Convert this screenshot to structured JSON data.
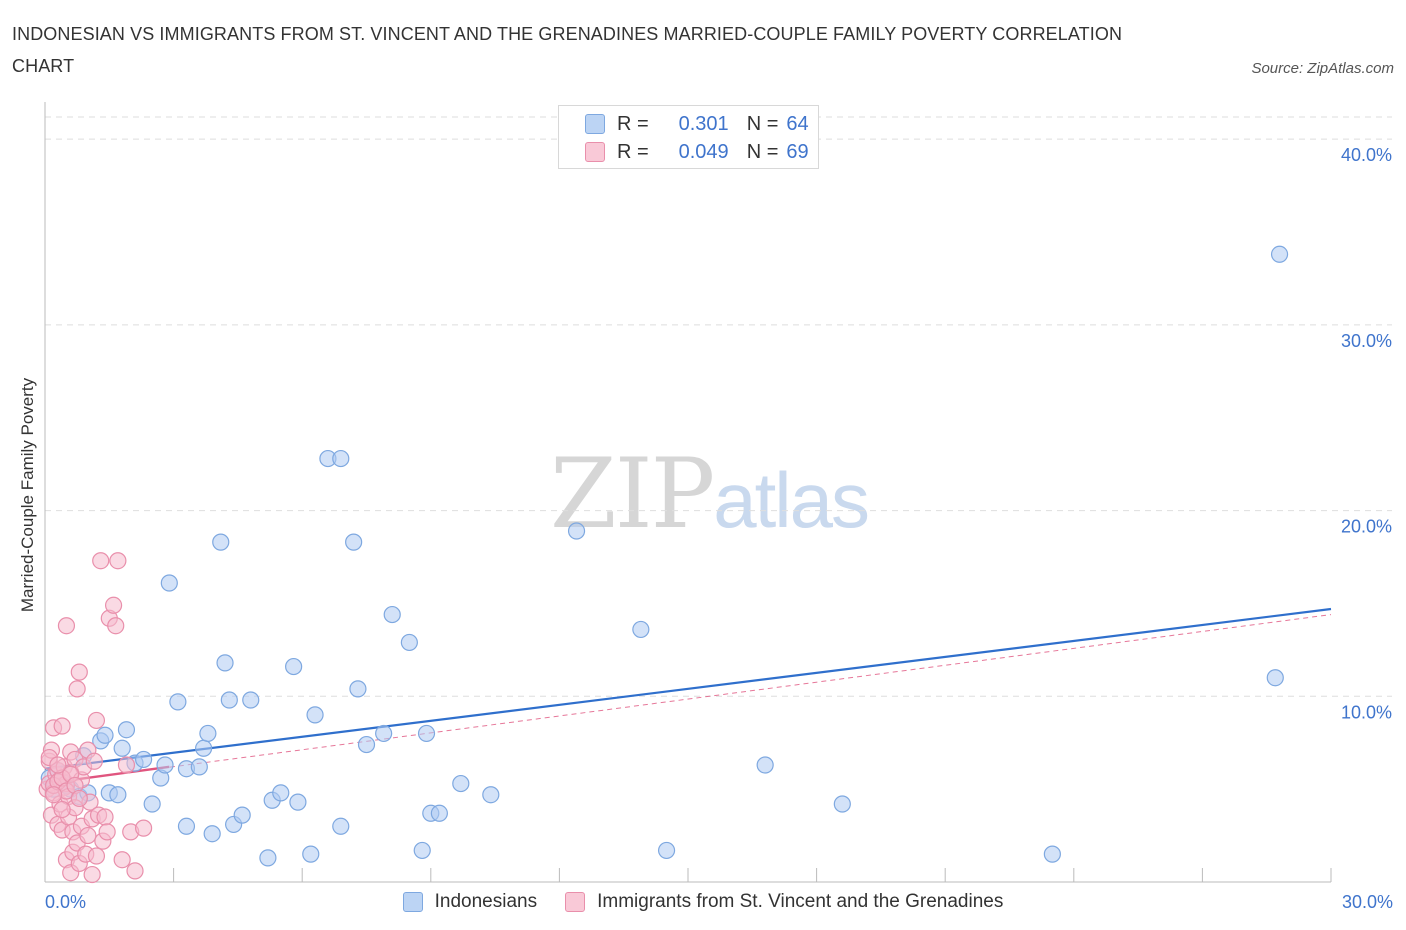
{
  "title": "INDONESIAN VS IMMIGRANTS FROM ST. VINCENT AND THE GRENADINES MARRIED-COUPLE FAMILY POVERTY CORRELATION CHART",
  "source": "Source: ZipAtlas.com",
  "watermark": {
    "zip": "ZIP",
    "atlas": "atlas"
  },
  "legend": {
    "rows": [
      {
        "r_label": "R =",
        "r_value": "0.301",
        "n_label": "N =",
        "n_value": "64"
      },
      {
        "r_label": "R =",
        "r_value": "0.049",
        "n_label": "N =",
        "n_value": "69"
      }
    ]
  },
  "colors": {
    "blue_fill": "#aecbf2",
    "blue_stroke": "#7ea8e0",
    "blue_line": "#2f6fcc",
    "pink_fill": "#f6bccd",
    "pink_stroke": "#e98fab",
    "pink_line": "#e0557f",
    "tick_text": "#3f74cc",
    "grid": "#dedede"
  },
  "chart_data": {
    "type": "scatter",
    "title": "INDONESIAN VS IMMIGRANTS FROM ST. VINCENT AND THE GRENADINES MARRIED-COUPLE FAMILY POVERTY CORRELATION CHART",
    "xlabel": "",
    "ylabel": "Married-Couple Family Poverty",
    "xlim": [
      0,
      30
    ],
    "ylim": [
      0,
      42
    ],
    "x_tick_labels": [
      "0.0%",
      "30.0%"
    ],
    "y_ticks": [
      10,
      20,
      30,
      40
    ],
    "y_tick_labels": [
      "10.0%",
      "20.0%",
      "30.0%",
      "40.0%"
    ],
    "grid": true,
    "legend_position": "top-center",
    "series": [
      {
        "name": "Indonesians",
        "color": "#aecbf2",
        "trend": {
          "x": [
            0.0,
            30.0
          ],
          "y": [
            6.1,
            14.7
          ],
          "style": "solid"
        },
        "points": [
          [
            0.2,
            5.0
          ],
          [
            0.4,
            5.4
          ],
          [
            0.6,
            5.0
          ],
          [
            0.8,
            4.6
          ],
          [
            0.9,
            6.8
          ],
          [
            1.0,
            4.8
          ],
          [
            1.3,
            7.6
          ],
          [
            1.4,
            7.9
          ],
          [
            1.5,
            4.8
          ],
          [
            1.7,
            4.7
          ],
          [
            1.8,
            7.2
          ],
          [
            1.9,
            8.2
          ],
          [
            2.1,
            6.4
          ],
          [
            2.3,
            6.6
          ],
          [
            2.5,
            4.2
          ],
          [
            2.7,
            5.6
          ],
          [
            2.8,
            6.3
          ],
          [
            2.9,
            16.1
          ],
          [
            3.1,
            9.7
          ],
          [
            3.3,
            3.0
          ],
          [
            3.3,
            6.1
          ],
          [
            3.6,
            6.2
          ],
          [
            3.7,
            7.2
          ],
          [
            3.8,
            8.0
          ],
          [
            3.9,
            2.6
          ],
          [
            4.1,
            18.3
          ],
          [
            4.2,
            11.8
          ],
          [
            4.3,
            9.8
          ],
          [
            4.4,
            3.1
          ],
          [
            4.6,
            3.6
          ],
          [
            4.8,
            9.8
          ],
          [
            5.2,
            1.3
          ],
          [
            5.3,
            4.4
          ],
          [
            5.5,
            4.8
          ],
          [
            5.8,
            11.6
          ],
          [
            5.9,
            4.3
          ],
          [
            6.2,
            1.5
          ],
          [
            6.3,
            9.0
          ],
          [
            6.6,
            22.8
          ],
          [
            6.9,
            22.8
          ],
          [
            6.9,
            3.0
          ],
          [
            7.2,
            18.3
          ],
          [
            7.3,
            10.4
          ],
          [
            7.5,
            7.4
          ],
          [
            7.9,
            8.0
          ],
          [
            8.1,
            14.4
          ],
          [
            8.5,
            12.9
          ],
          [
            8.8,
            1.7
          ],
          [
            8.9,
            8.0
          ],
          [
            9.0,
            3.7
          ],
          [
            9.2,
            3.7
          ],
          [
            9.7,
            5.3
          ],
          [
            10.4,
            4.7
          ],
          [
            12.4,
            18.9
          ],
          [
            13.9,
            13.6
          ],
          [
            14.5,
            1.7
          ],
          [
            16.8,
            6.3
          ],
          [
            18.6,
            4.2
          ],
          [
            23.5,
            1.5
          ],
          [
            28.7,
            11.0
          ],
          [
            28.8,
            33.8
          ],
          [
            0.1,
            5.6
          ],
          [
            0.3,
            6.0
          ],
          [
            0.5,
            5.2
          ]
        ]
      },
      {
        "name": "Immigrants from St. Vincent and the Grenadines",
        "color": "#f6bccd",
        "trend": {
          "x": [
            0.0,
            2.9
          ],
          "y": [
            5.3,
            6.2
          ],
          "style": "solid"
        },
        "trend_extended": {
          "x": [
            0.0,
            30.0
          ],
          "y": [
            5.3,
            14.4
          ],
          "style": "dashed"
        },
        "points": [
          [
            0.05,
            5.0
          ],
          [
            0.1,
            5.3
          ],
          [
            0.1,
            6.5
          ],
          [
            0.15,
            7.1
          ],
          [
            0.15,
            3.6
          ],
          [
            0.2,
            8.3
          ],
          [
            0.2,
            4.8
          ],
          [
            0.25,
            5.8
          ],
          [
            0.3,
            3.1
          ],
          [
            0.3,
            6.0
          ],
          [
            0.35,
            5.5
          ],
          [
            0.35,
            4.2
          ],
          [
            0.4,
            8.4
          ],
          [
            0.4,
            2.8
          ],
          [
            0.45,
            5.1
          ],
          [
            0.45,
            6.2
          ],
          [
            0.5,
            13.8
          ],
          [
            0.5,
            5.3
          ],
          [
            0.5,
            1.2
          ],
          [
            0.55,
            4.6
          ],
          [
            0.55,
            3.5
          ],
          [
            0.6,
            7.0
          ],
          [
            0.6,
            5.9
          ],
          [
            0.6,
            0.5
          ],
          [
            0.65,
            2.7
          ],
          [
            0.65,
            1.6
          ],
          [
            0.7,
            6.6
          ],
          [
            0.7,
            4.0
          ],
          [
            0.75,
            10.4
          ],
          [
            0.75,
            2.1
          ],
          [
            0.8,
            11.3
          ],
          [
            0.8,
            1.0
          ],
          [
            0.85,
            5.5
          ],
          [
            0.85,
            3.0
          ],
          [
            0.9,
            6.2
          ],
          [
            0.95,
            1.5
          ],
          [
            1.0,
            7.1
          ],
          [
            1.0,
            2.5
          ],
          [
            1.05,
            4.3
          ],
          [
            1.1,
            3.4
          ],
          [
            1.1,
            0.4
          ],
          [
            1.15,
            6.5
          ],
          [
            1.2,
            8.7
          ],
          [
            1.2,
            1.4
          ],
          [
            1.25,
            3.6
          ],
          [
            1.3,
            17.3
          ],
          [
            1.35,
            2.2
          ],
          [
            1.4,
            3.5
          ],
          [
            1.45,
            2.7
          ],
          [
            1.5,
            14.2
          ],
          [
            1.6,
            14.9
          ],
          [
            1.65,
            13.8
          ],
          [
            1.7,
            17.3
          ],
          [
            1.8,
            1.2
          ],
          [
            1.9,
            6.3
          ],
          [
            2.0,
            2.7
          ],
          [
            2.1,
            0.6
          ],
          [
            2.3,
            2.9
          ],
          [
            0.1,
            6.7
          ],
          [
            0.2,
            5.2
          ],
          [
            0.3,
            5.4
          ],
          [
            0.4,
            5.6
          ],
          [
            0.5,
            4.9
          ],
          [
            0.6,
            5.8
          ],
          [
            0.7,
            5.2
          ],
          [
            0.2,
            4.7
          ],
          [
            0.3,
            6.3
          ],
          [
            0.4,
            3.9
          ],
          [
            0.8,
            4.5
          ]
        ]
      }
    ]
  }
}
